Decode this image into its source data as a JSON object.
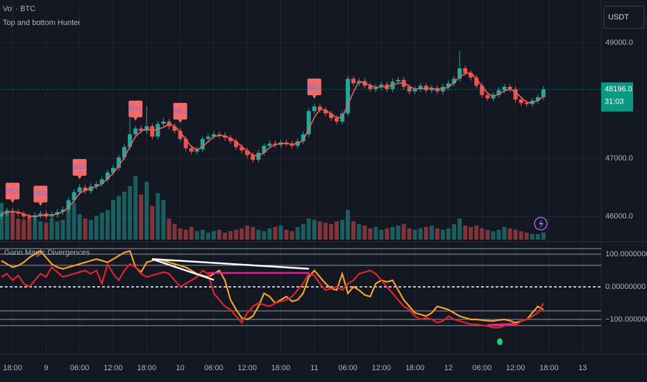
{
  "chart_data": {
    "type": "candlestick",
    "volume_label": "Vol · BTC",
    "indicator": "Top and bottom Hunter",
    "osc_title": "Gann Magic Divergences",
    "currency": "USDT",
    "last_label": "48196.0",
    "countdown": "31:03",
    "categories": [
      null,
      null,
      "18:00",
      null,
      null,
      null,
      null,
      null,
      "9",
      null,
      null,
      null,
      null,
      null,
      "06:00",
      null,
      null,
      null,
      null,
      null,
      "12:00",
      null,
      null,
      null,
      null,
      null,
      "18:00",
      null,
      null,
      null,
      null,
      null,
      "10",
      null,
      null,
      null,
      null,
      null,
      "06:00",
      null,
      null,
      null,
      null,
      null,
      "12:00",
      null,
      null,
      null,
      null,
      null,
      "18:00",
      null,
      null,
      null,
      null,
      null,
      "11",
      null,
      null,
      null,
      null,
      null,
      "06:00",
      null,
      null,
      null,
      null,
      null,
      "12:00",
      null,
      null,
      null,
      null,
      null,
      "18:00",
      null,
      null,
      null,
      null,
      null,
      "12",
      null,
      null,
      null,
      null,
      null,
      "06:00",
      null,
      null,
      null,
      null,
      null,
      "12:00",
      null,
      null,
      null,
      null,
      null,
      "18:00",
      null,
      null,
      null,
      null,
      null,
      "13"
    ],
    "open": [
      46000,
      46050,
      46100,
      46080,
      46050,
      46000,
      45980,
      46020,
      46050,
      46000,
      46030,
      46080,
      46120,
      46280,
      46420,
      46500,
      46440,
      46520,
      46560,
      46640,
      46760,
      46840,
      47020,
      47200,
      47420,
      47520,
      47480,
      47560,
      47380,
      47600,
      47640,
      47560,
      47480,
      47340,
      47180,
      47120,
      47160,
      47340,
      47380,
      47420,
      47400,
      47360,
      47300,
      47200,
      47140,
      47060,
      46980,
      47100,
      47220,
      47260,
      47240,
      47280,
      47260,
      47220,
      47300,
      47420,
      47820,
      47900,
      47840,
      47780,
      47700,
      47640,
      47780,
      48380,
      48300,
      48340,
      48260,
      48200,
      48240,
      48280,
      48200,
      48330,
      48360,
      48240,
      48160,
      48200,
      48260,
      48180,
      48220,
      48160,
      48240,
      48300,
      48380,
      48560,
      48480,
      48400,
      48260,
      48100,
      48040,
      48100,
      48180,
      48240,
      48200,
      48020,
      47960,
      47940,
      48000,
      48060,
      null,
      null,
      null,
      null,
      null,
      null,
      null
    ],
    "high": [
      46100,
      46150,
      46150,
      46130,
      46100,
      46050,
      46070,
      46100,
      46100,
      46080,
      46130,
      46170,
      46330,
      46470,
      46560,
      46550,
      46570,
      46610,
      46690,
      46810,
      46890,
      47070,
      47250,
      47700,
      47570,
      47570,
      47900,
      47610,
      47650,
      47700,
      47690,
      47610,
      47530,
      47390,
      47230,
      47210,
      47390,
      47430,
      47470,
      47470,
      47450,
      47410,
      47350,
      47250,
      47190,
      47110,
      47150,
      47270,
      47310,
      47310,
      47330,
      47330,
      47310,
      47350,
      47470,
      47870,
      47950,
      47950,
      47890,
      47830,
      47750,
      47830,
      48430,
      48430,
      48390,
      48390,
      48310,
      48290,
      48330,
      48330,
      48380,
      48410,
      48410,
      48290,
      48250,
      48310,
      48310,
      48270,
      48270,
      48290,
      48350,
      48430,
      48860,
      48610,
      48530,
      48450,
      48310,
      48150,
      48150,
      48230,
      48290,
      48290,
      48250,
      48070,
      48010,
      48050,
      48110,
      48250,
      null,
      null,
      null,
      null,
      null,
      null,
      null
    ],
    "low": [
      45950,
      46000,
      46030,
      46000,
      45950,
      45930,
      45930,
      45970,
      45950,
      45950,
      45980,
      46030,
      46070,
      46230,
      46370,
      46390,
      46390,
      46470,
      46510,
      46590,
      46710,
      46790,
      46970,
      47150,
      47370,
      47430,
      47430,
      47330,
      47330,
      47550,
      47510,
      47430,
      47290,
      47130,
      47070,
      47070,
      47110,
      47290,
      47330,
      47350,
      47310,
      47250,
      47150,
      47090,
      47010,
      46930,
      46930,
      47050,
      47170,
      47190,
      47190,
      47210,
      47170,
      47170,
      47250,
      47370,
      47770,
      47790,
      47730,
      47650,
      47590,
      47590,
      47730,
      48250,
      48250,
      48210,
      48150,
      48150,
      48190,
      48150,
      48150,
      48280,
      48190,
      48110,
      48110,
      48150,
      48130,
      48130,
      48110,
      48110,
      48190,
      48250,
      48330,
      48430,
      48350,
      48210,
      48050,
      47990,
      47990,
      48050,
      48130,
      48150,
      47970,
      47910,
      47890,
      47890,
      47950,
      48010,
      null,
      null,
      null,
      null,
      null,
      null,
      null
    ],
    "close": [
      46050,
      46100,
      46080,
      46050,
      46000,
      45980,
      46020,
      46050,
      46000,
      46030,
      46080,
      46120,
      46280,
      46420,
      46500,
      46440,
      46520,
      46560,
      46640,
      46760,
      46840,
      47020,
      47200,
      47420,
      47520,
      47480,
      47560,
      47380,
      47600,
      47640,
      47560,
      47480,
      47340,
      47180,
      47120,
      47160,
      47340,
      47380,
      47420,
      47400,
      47360,
      47300,
      47200,
      47140,
      47060,
      46980,
      47100,
      47220,
      47260,
      47240,
      47280,
      47260,
      47220,
      47300,
      47420,
      47820,
      47900,
      47840,
      47780,
      47700,
      47640,
      47780,
      48380,
      48300,
      48340,
      48260,
      48200,
      48240,
      48280,
      48200,
      48330,
      48360,
      48240,
      48160,
      48200,
      48260,
      48180,
      48220,
      48160,
      48240,
      48300,
      48380,
      48560,
      48480,
      48400,
      48260,
      48100,
      48040,
      48100,
      48180,
      48240,
      48200,
      48020,
      47960,
      47940,
      48000,
      48060,
      48196,
      null,
      null,
      null,
      null,
      null,
      null,
      null
    ],
    "ma": [
      46050,
      46070,
      46080,
      46075,
      46045,
      46010,
      46000,
      46015,
      46025,
      46030,
      46040,
      46080,
      46160,
      46270,
      46400,
      46450,
      46490,
      46510,
      46570,
      46650,
      46750,
      46870,
      47020,
      47210,
      47380,
      47470,
      47520,
      47480,
      47510,
      47540,
      47600,
      47560,
      47460,
      47330,
      47210,
      47150,
      47210,
      47290,
      47380,
      47400,
      47390,
      47350,
      47290,
      47210,
      47130,
      47060,
      47050,
      47100,
      47190,
      47240,
      47260,
      47260,
      47250,
      47260,
      47310,
      47510,
      47710,
      47850,
      47840,
      47770,
      47710,
      47710,
      47930,
      48150,
      48340,
      48300,
      48270,
      48230,
      48240,
      48240,
      48270,
      48300,
      48310,
      48250,
      48200,
      48210,
      48210,
      48220,
      48190,
      48210,
      48230,
      48310,
      48410,
      48470,
      48480,
      48380,
      48250,
      48130,
      48080,
      48110,
      48170,
      48200,
      48150,
      48060,
      47970,
      47970,
      48000,
      48080,
      null,
      null,
      null,
      null,
      null,
      null,
      null
    ],
    "ma_color": "#e8635f",
    "volume": [
      520,
      420,
      380,
      300,
      280,
      320,
      300,
      260,
      240,
      300,
      260,
      280,
      480,
      520,
      360,
      300,
      280,
      340,
      380,
      420,
      560,
      620,
      680,
      760,
      900,
      640,
      820,
      480,
      660,
      560,
      300,
      220,
      160,
      140,
      180,
      120,
      140,
      100,
      120,
      140,
      100,
      120,
      140,
      160,
      200,
      180,
      140,
      120,
      160,
      180,
      200,
      140,
      120,
      180,
      220,
      300,
      280,
      260,
      240,
      220,
      260,
      280,
      420,
      260,
      220,
      200,
      160,
      180,
      140,
      160,
      180,
      200,
      220,
      160,
      140,
      160,
      180,
      200,
      160,
      140,
      160,
      220,
      300,
      200,
      180,
      200,
      160,
      140,
      120,
      140,
      180,
      160,
      140,
      120,
      100,
      80,
      80,
      100,
      null,
      null,
      null,
      null,
      null,
      null,
      null
    ],
    "volume_ylim": [
      0,
      3400
    ],
    "signals": [
      null,
      null,
      "SELL",
      null,
      null,
      null,
      null,
      "SELL",
      null,
      null,
      null,
      null,
      null,
      null,
      "SELL",
      null,
      null,
      null,
      null,
      null,
      null,
      null,
      null,
      null,
      "SELL",
      null,
      null,
      null,
      null,
      null,
      null,
      null,
      "SELL",
      null,
      null,
      null,
      null,
      null,
      null,
      null,
      null,
      null,
      null,
      null,
      null,
      null,
      null,
      null,
      null,
      null,
      null,
      null,
      null,
      null,
      null,
      null,
      "SELL",
      null,
      null,
      null,
      null,
      null,
      null,
      null,
      null,
      null,
      null,
      null,
      null,
      null,
      null,
      null,
      null,
      null,
      null,
      null,
      null,
      null,
      null,
      null,
      null,
      null,
      null,
      null,
      null,
      null,
      null,
      null,
      null,
      null,
      null,
      null,
      null,
      null,
      null,
      null,
      null,
      null,
      null,
      null,
      null,
      null,
      null,
      null,
      null
    ],
    "up_color": "#26a69a",
    "down_color": "#ef5350",
    "ylim": [
      45600,
      49740
    ],
    "yticks": [
      {
        "value": 46000,
        "label": "46000.0"
      },
      {
        "value": 47000,
        "label": "47000.0"
      },
      {
        "value": 49000,
        "label": "49000.0"
      }
    ],
    "osc_ylim": [
      -196,
      134
    ],
    "osc_yticks": [
      {
        "value": 100,
        "label": "100.00000000"
      },
      {
        "value": 0,
        "label": "0.00000000"
      },
      {
        "value": -100,
        "label": "−100.00000000"
      }
    ],
    "osc_levels": [
      117,
      66,
      -74,
      -119
    ],
    "osc_series": [
      {
        "color": "#f7a325",
        "values": [
          80,
          70,
          60,
          65,
          75,
          90,
          100,
          110,
          90,
          70,
          60,
          55,
          60,
          65,
          70,
          75,
          80,
          85,
          80,
          75,
          85,
          95,
          105,
          110,
          60,
          45,
          75,
          80,
          85,
          80,
          75,
          70,
          65,
          60,
          50,
          40,
          35,
          30,
          40,
          50,
          20,
          -40,
          -70,
          -95,
          -100,
          -90,
          -60,
          -20,
          -30,
          -50,
          -40,
          -30,
          -45,
          -40,
          -20,
          30,
          50,
          30,
          10,
          -5,
          -10,
          40,
          -20,
          0,
          -10,
          -25,
          -30,
          10,
          20,
          15,
          20,
          -10,
          -40,
          -60,
          -80,
          -85,
          -90,
          -80,
          -60,
          -65,
          -70,
          -80,
          -90,
          -95,
          -100,
          -100,
          -102,
          -104,
          -105,
          -102,
          -100,
          -104,
          -110,
          -105,
          -100,
          -80,
          -60,
          -70,
          null,
          null,
          null,
          null,
          null,
          null,
          null
        ]
      },
      {
        "color": "#e0262b",
        "values": [
          30,
          40,
          20,
          35,
          10,
          0,
          20,
          40,
          30,
          60,
          45,
          30,
          35,
          40,
          45,
          50,
          40,
          50,
          10,
          70,
          40,
          20,
          50,
          70,
          60,
          40,
          30,
          35,
          40,
          45,
          40,
          20,
          0,
          10,
          20,
          30,
          50,
          40,
          -20,
          -40,
          -60,
          -70,
          -90,
          -110,
          -80,
          -60,
          -50,
          -55,
          -60,
          -50,
          -45,
          -40,
          -30,
          -10,
          10,
          40,
          35,
          10,
          -10,
          -5,
          0,
          -10,
          10,
          20,
          40,
          45,
          50,
          40,
          20,
          0,
          -20,
          -40,
          -60,
          -70,
          -90,
          -100,
          -95,
          -100,
          -110,
          -105,
          -90,
          -100,
          -105,
          -110,
          -115,
          -115,
          -118,
          -120,
          -125,
          -125,
          -120,
          -115,
          -118,
          -105,
          -100,
          -90,
          -80,
          -50,
          null,
          null,
          null,
          null,
          null,
          null,
          null
        ]
      }
    ],
    "grid": true
  }
}
